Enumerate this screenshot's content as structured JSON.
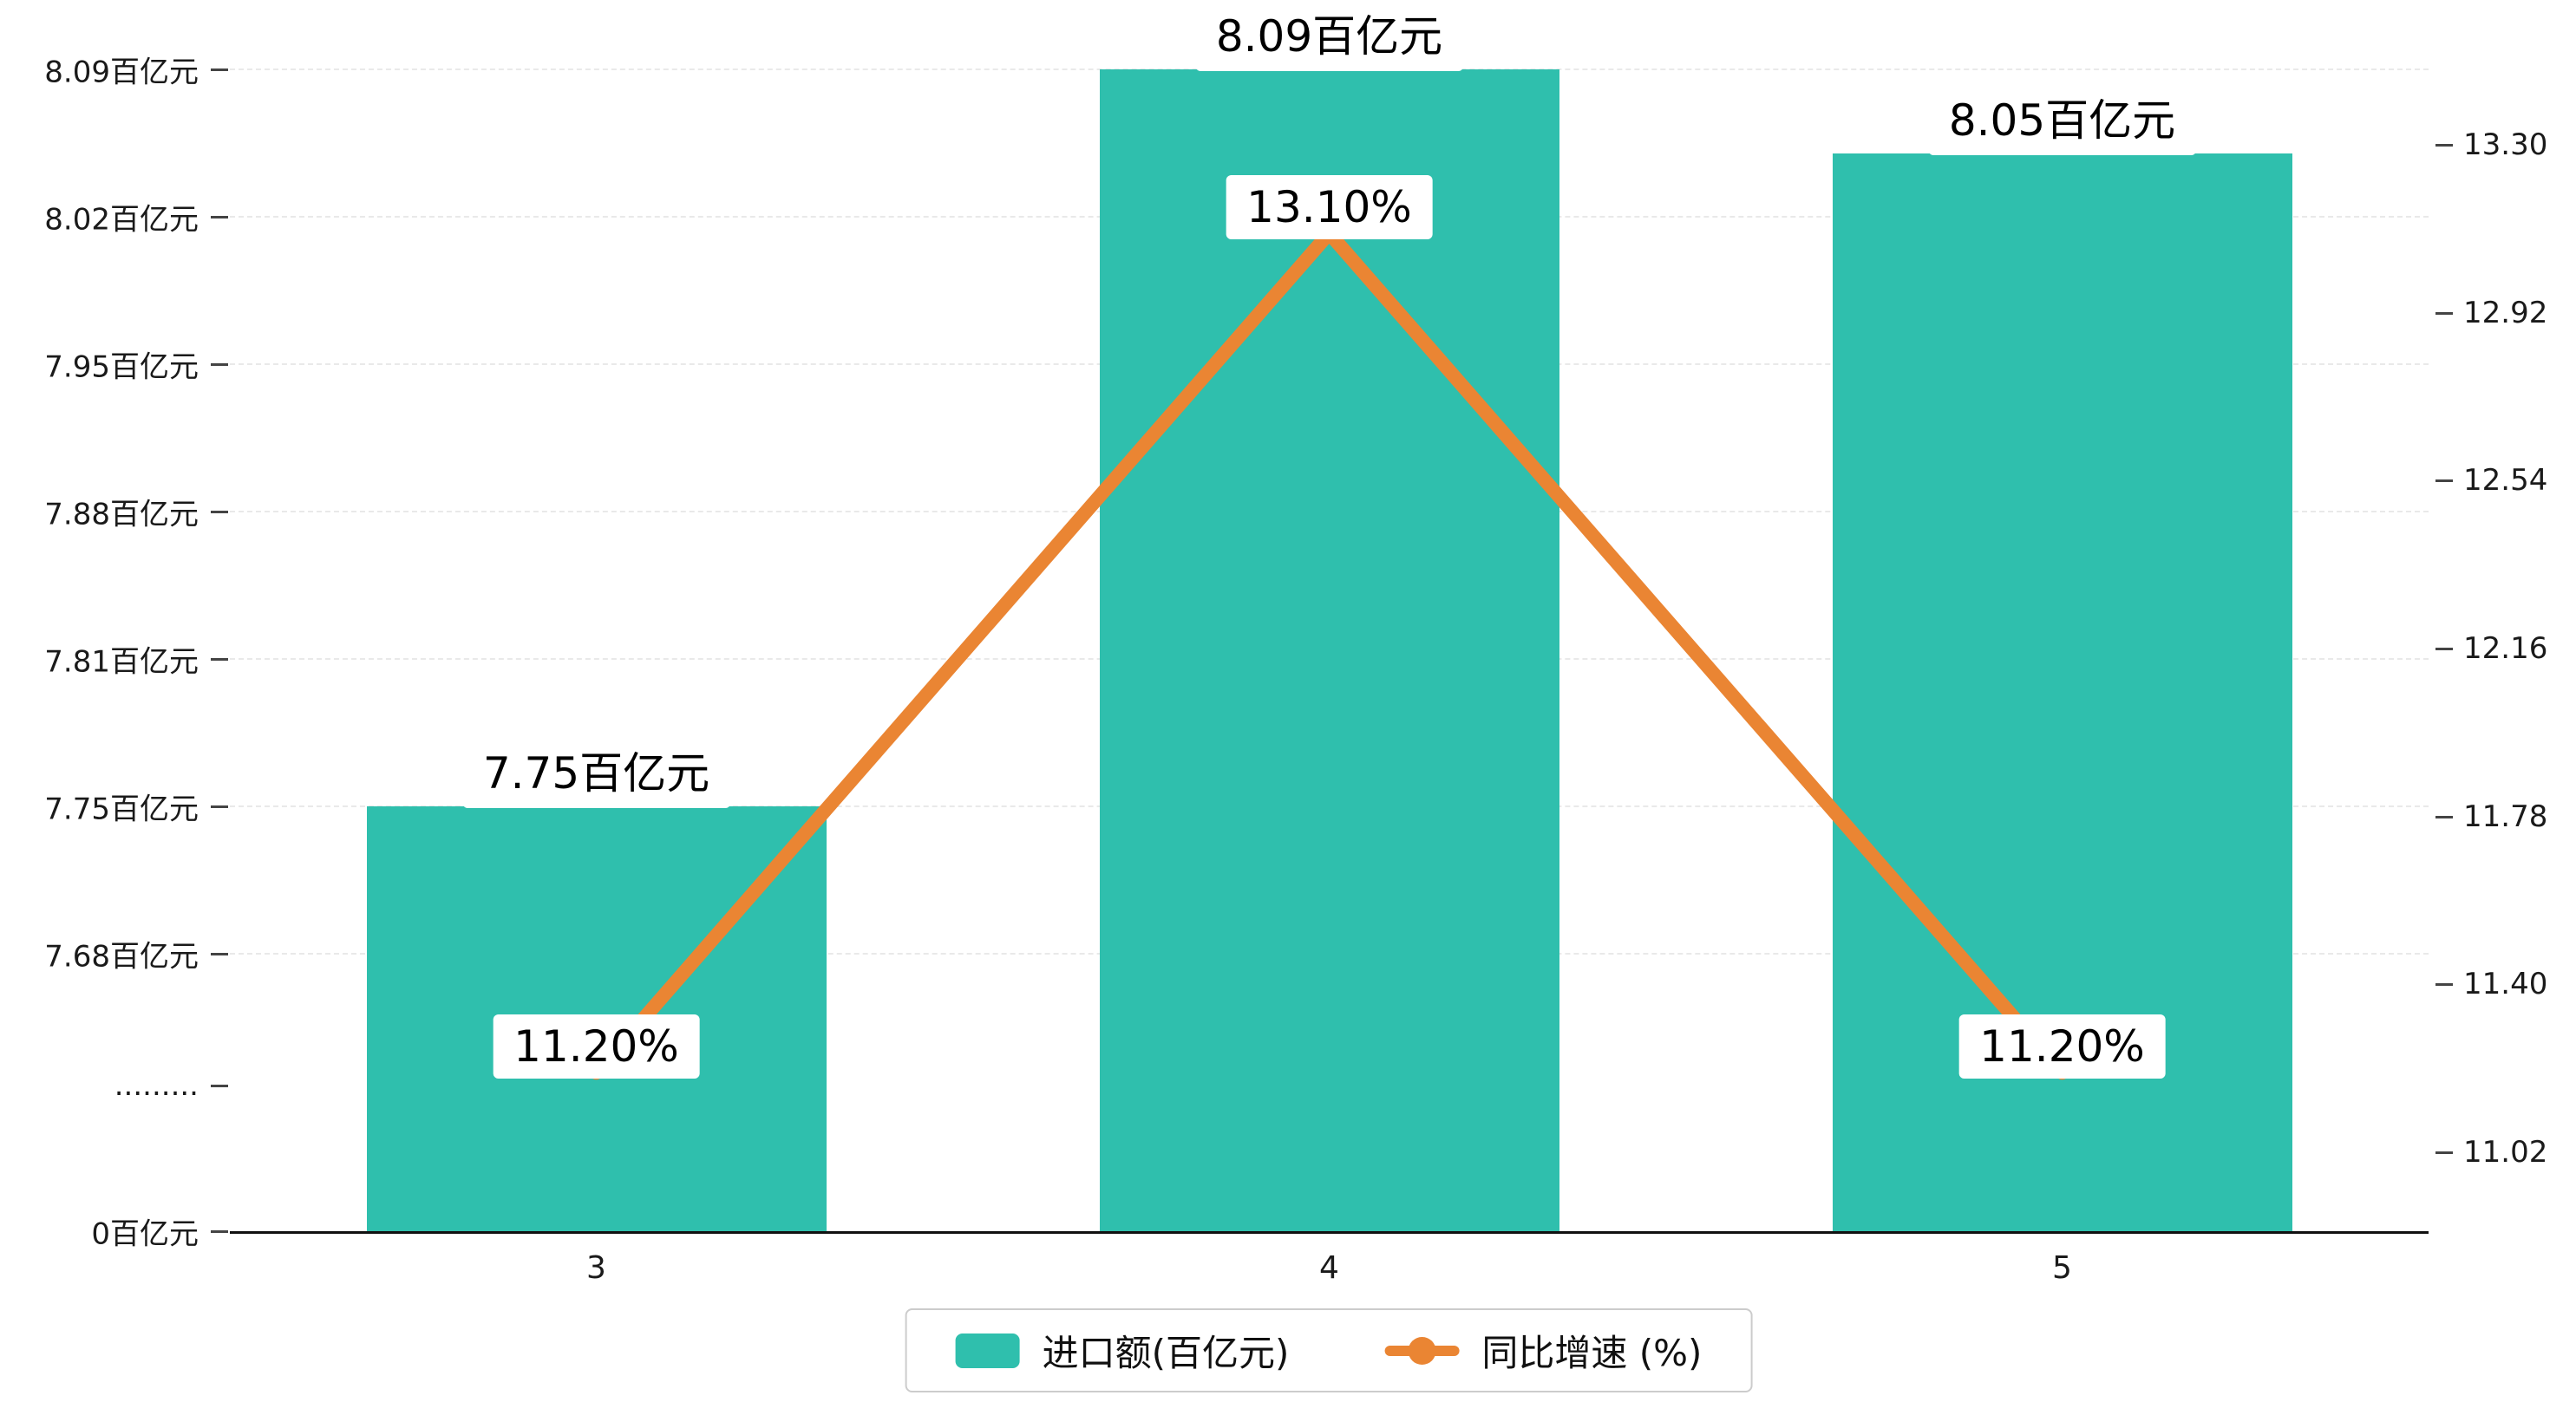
{
  "chart_data": {
    "type": "bar",
    "combo": "bar+line dual-axis",
    "categories": [
      "3",
      "4",
      "5"
    ],
    "series": [
      {
        "name": "进口额(百亿元)",
        "type": "bar",
        "axis": "left",
        "color": "#2FBFAD",
        "values": [
          7.75,
          8.09,
          8.05
        ],
        "value_labels": [
          "7.75百亿元",
          "8.09百亿元",
          "8.05百亿元"
        ]
      },
      {
        "name": "同比增速 (%)",
        "type": "line",
        "axis": "right",
        "color": "#EA8533",
        "values": [
          11.2,
          13.1,
          11.2
        ],
        "value_labels": [
          "11.20%",
          "13.10%",
          "11.20%"
        ]
      }
    ],
    "left_axis": {
      "tick_labels": [
        "8.09百亿元",
        "8.02百亿元",
        "7.95百亿元",
        "7.88百亿元",
        "7.81百亿元",
        "7.75百亿元",
        "7.68百亿元",
        ".........",
        "0百亿元"
      ],
      "tick_values": [
        8.09,
        8.02,
        7.95,
        7.88,
        7.81,
        7.75,
        7.68,
        null,
        0
      ],
      "axis_break": true
    },
    "right_axis": {
      "tick_labels": [
        "13.30",
        "12.92",
        "12.54",
        "12.16",
        "11.78",
        "11.40",
        "11.02"
      ],
      "max": 13.3,
      "min": 11.02
    },
    "legend": {
      "items": [
        "进口额(百亿元)",
        "同比增速 (%)"
      ],
      "position": "bottom"
    },
    "grid": true,
    "background": "#ffffff"
  }
}
